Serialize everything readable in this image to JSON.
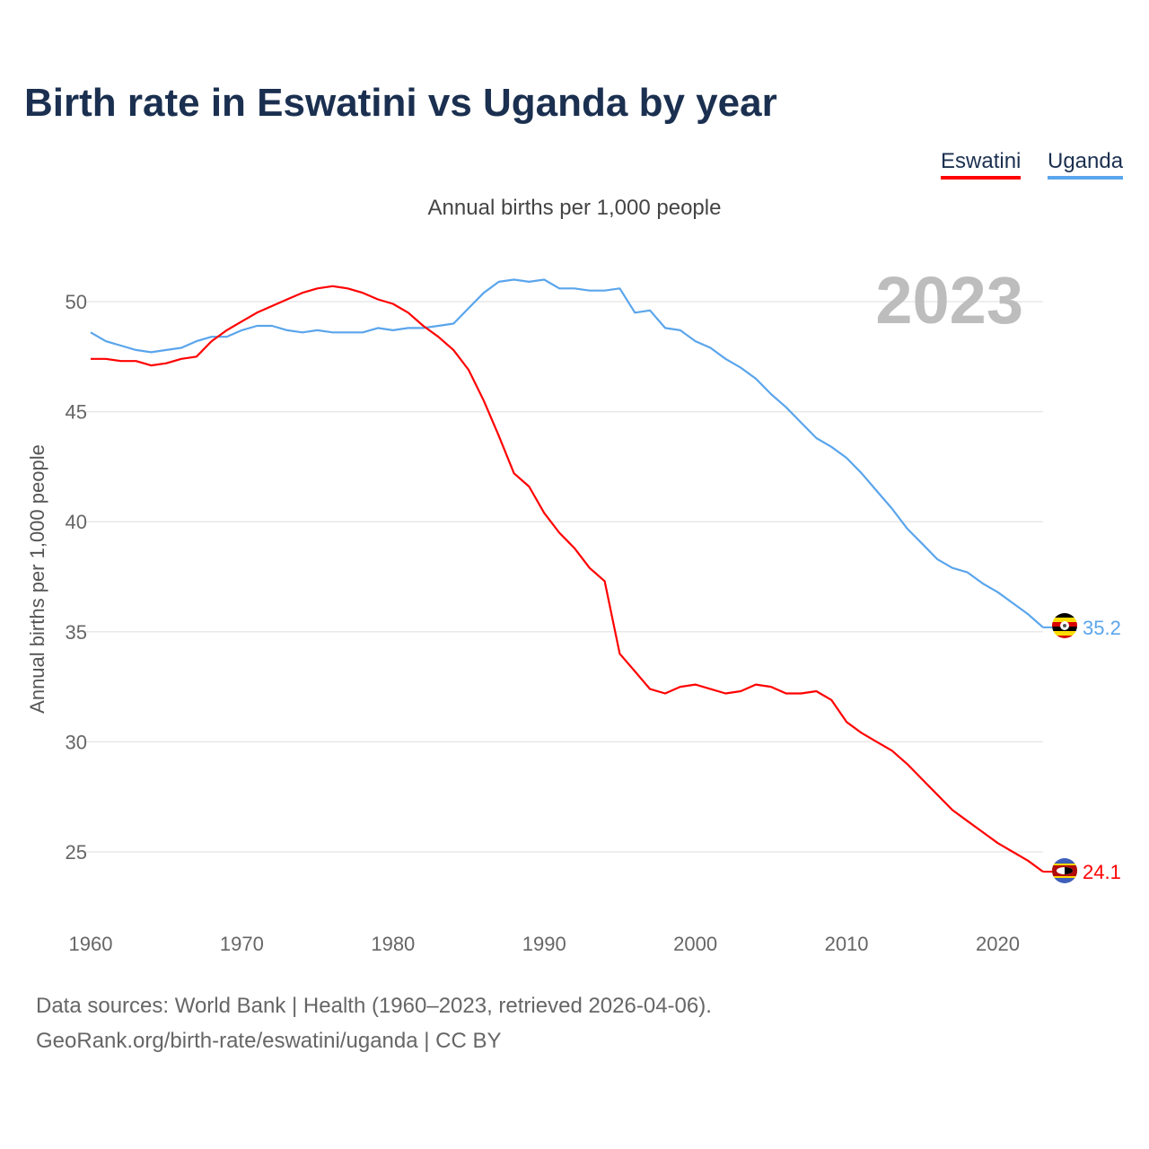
{
  "title": "Birth rate in Eswatini vs Uganda by year",
  "subtitle": "Annual births per 1,000 people",
  "footer": {
    "line1": "Data sources: World Bank | Health (1960–2023, retrieved 2026-04-06).",
    "line2": "GeoRank.org/birth-rate/eswatini/uganda | CC BY"
  },
  "chart_data": {
    "type": "line",
    "title": "Birth rate in Eswatini vs Uganda by year",
    "ylabel": "Annual births per 1,000 people",
    "xlabel": "",
    "year_label": "2023",
    "xlim": [
      1960,
      2023
    ],
    "ylim": [
      22.5,
      52.5
    ],
    "xticks": [
      "1960",
      "1970",
      "1980",
      "1990",
      "2000",
      "2010",
      "2020"
    ],
    "yticks": [
      "25",
      "30",
      "35",
      "40",
      "45",
      "50"
    ],
    "grid": true,
    "legend_placement": "top-right",
    "x_start": 1960,
    "series": [
      {
        "name": "Eswatini",
        "color": "#ff0000",
        "end_label": "24.1",
        "values": [
          47.4,
          47.4,
          47.3,
          47.3,
          47.1,
          47.2,
          47.4,
          47.5,
          48.2,
          48.7,
          49.1,
          49.5,
          49.8,
          50.1,
          50.4,
          50.6,
          50.7,
          50.6,
          50.4,
          50.1,
          49.9,
          49.5,
          48.9,
          48.4,
          47.8,
          46.9,
          45.5,
          43.9,
          42.2,
          41.6,
          40.4,
          39.5,
          38.8,
          37.9,
          37.3,
          34.0,
          33.2,
          32.4,
          32.2,
          32.5,
          32.6,
          32.4,
          32.2,
          32.3,
          32.6,
          32.5,
          32.2,
          32.2,
          32.3,
          31.9,
          30.9,
          30.4,
          30.0,
          29.6,
          29.0,
          28.3,
          27.6,
          26.9,
          26.4,
          25.9,
          25.4,
          25.0,
          24.6,
          24.1
        ]
      },
      {
        "name": "Uganda",
        "color": "#5aa5ec",
        "end_label": "35.2",
        "values": [
          48.6,
          48.2,
          48.0,
          47.8,
          47.7,
          47.8,
          47.9,
          48.2,
          48.4,
          48.4,
          48.7,
          48.9,
          48.9,
          48.7,
          48.6,
          48.7,
          48.6,
          48.6,
          48.6,
          48.8,
          48.7,
          48.8,
          48.8,
          48.9,
          49.0,
          49.7,
          50.4,
          50.9,
          51.0,
          50.9,
          51.0,
          50.6,
          50.6,
          50.5,
          50.5,
          50.6,
          49.5,
          49.6,
          48.8,
          48.7,
          48.2,
          47.9,
          47.4,
          47.0,
          46.5,
          45.8,
          45.2,
          44.5,
          43.8,
          43.4,
          42.9,
          42.2,
          41.4,
          40.6,
          39.7,
          39.0,
          38.3,
          37.9,
          37.7,
          37.2,
          36.8,
          36.3,
          35.8,
          35.2
        ]
      }
    ]
  }
}
